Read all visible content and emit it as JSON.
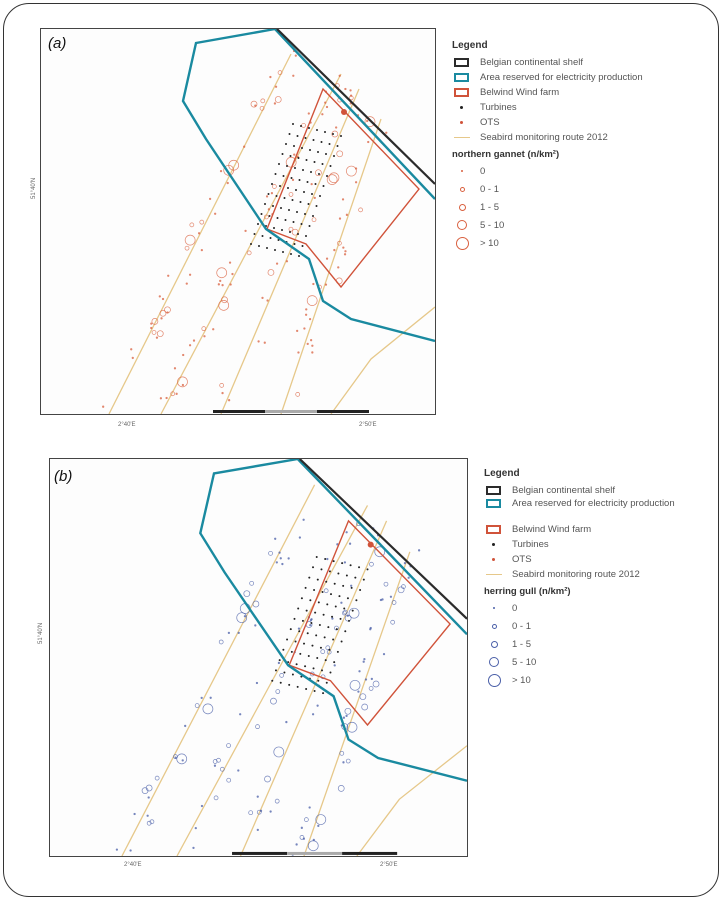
{
  "panels": [
    {
      "label": "(a)",
      "lat_label": "51°40'N",
      "lon_labels": [
        "2°40'E",
        "2°50'E"
      ],
      "legend": {
        "title": "Legend",
        "items": [
          {
            "label": "Belgian continental shelf",
            "symbol": "rect",
            "color": "#2b2b2b"
          },
          {
            "label": "Area reserved for electricity production",
            "symbol": "rect",
            "color": "#1a8aa0"
          },
          {
            "label": "Belwind Wind farm",
            "symbol": "rect",
            "color": "#d0533a"
          },
          {
            "label": "Turbines",
            "symbol": "dot",
            "color": "#222222"
          },
          {
            "label": "OTS",
            "symbol": "dot",
            "color": "#d0533a"
          },
          {
            "label": "Seabird monitoring route 2012",
            "symbol": "line",
            "color": "#e6c88a"
          }
        ],
        "density_title": "northern gannet (n/km²)",
        "density_classes": [
          "0",
          "0 - 1",
          "1 - 5",
          "5 - 10",
          "> 10"
        ],
        "density_color": "#d9603f"
      }
    },
    {
      "label": "(b)",
      "lat_label": "51°40'N",
      "lon_labels": [
        "2°40'E",
        "2°50'E"
      ],
      "legend": {
        "title": "Legend",
        "items": [
          {
            "label": "Belgian continental shelf",
            "symbol": "rect",
            "color": "#2b2b2b"
          },
          {
            "label": "Area reserved for electricity production",
            "symbol": "rect",
            "color": "#1a8aa0"
          },
          {
            "label": "Belwind Wind farm",
            "symbol": "rect",
            "color": "#d0533a"
          },
          {
            "label": "Turbines",
            "symbol": "dot",
            "color": "#222222"
          },
          {
            "label": "OTS",
            "symbol": "dot",
            "color": "#d0533a"
          },
          {
            "label": "Seabird monitoring route 2012",
            "symbol": "line",
            "color": "#e6c88a"
          }
        ],
        "density_title": "herring gull (n/km²)",
        "density_classes": [
          "0",
          "0 - 1",
          "1 - 5",
          "5 - 10",
          "> 10"
        ],
        "density_color": "#4a5fa8"
      }
    }
  ],
  "colors": {
    "shelf": "#2b2b2b",
    "reserved_area": "#1a8aa0",
    "wind_farm": "#d0533a",
    "route": "#e6c88a",
    "turbine": "#222222"
  }
}
